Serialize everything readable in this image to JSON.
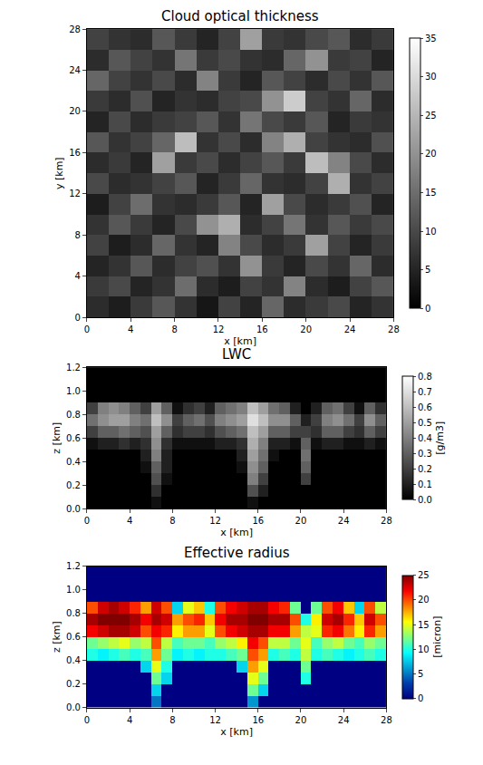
{
  "chart_data": [
    {
      "type": "heatmap",
      "title": "Cloud optical thickness",
      "color": "gray",
      "x_label": "x [km]",
      "y_label": "y [km]",
      "x": [
        1,
        3,
        5,
        7,
        9,
        11,
        13,
        15,
        17,
        19,
        21,
        23,
        25,
        27
      ],
      "y": [
        1,
        3,
        5,
        7,
        9,
        11,
        13,
        15,
        17,
        19,
        21,
        23,
        25,
        27
      ],
      "z": [
        [
          6,
          4,
          8,
          12,
          7,
          3,
          9,
          5,
          14,
          6,
          8,
          10,
          5,
          7
        ],
        [
          8,
          10,
          5,
          7,
          15,
          6,
          4,
          9,
          7,
          18,
          6,
          4,
          9,
          12
        ],
        [
          5,
          7,
          12,
          6,
          9,
          11,
          7,
          20,
          8,
          5,
          10,
          7,
          14,
          6
        ],
        [
          9,
          4,
          6,
          14,
          7,
          5,
          18,
          10,
          6,
          8,
          22,
          9,
          5,
          8
        ],
        [
          7,
          12,
          8,
          5,
          10,
          20,
          24,
          6,
          9,
          16,
          7,
          12,
          8,
          10
        ],
        [
          4,
          9,
          15,
          7,
          6,
          8,
          12,
          5,
          22,
          10,
          6,
          8,
          11,
          5
        ],
        [
          10,
          6,
          7,
          9,
          12,
          5,
          8,
          14,
          7,
          6,
          9,
          24,
          7,
          9
        ],
        [
          6,
          8,
          5,
          22,
          8,
          10,
          6,
          9,
          12,
          8,
          26,
          18,
          10,
          6
        ],
        [
          12,
          7,
          9,
          14,
          26,
          7,
          10,
          6,
          18,
          24,
          9,
          7,
          6,
          11
        ],
        [
          5,
          10,
          6,
          8,
          9,
          12,
          7,
          16,
          10,
          8,
          12,
          5,
          8,
          7
        ],
        [
          8,
          6,
          11,
          5,
          7,
          6,
          9,
          10,
          20,
          28,
          9,
          7,
          14,
          6
        ],
        [
          14,
          9,
          7,
          10,
          6,
          18,
          8,
          5,
          12,
          9,
          6,
          10,
          7,
          12
        ],
        [
          6,
          12,
          9,
          7,
          16,
          8,
          10,
          7,
          6,
          14,
          20,
          8,
          9,
          5
        ],
        [
          9,
          7,
          6,
          12,
          8,
          5,
          9,
          22,
          8,
          7,
          10,
          12,
          6,
          8
        ]
      ],
      "xlim": [
        0,
        28
      ],
      "xticks": [
        0,
        4,
        8,
        12,
        16,
        20,
        24,
        28
      ],
      "ylim": [
        0,
        28
      ],
      "yticks": [
        0,
        4,
        8,
        12,
        16,
        20,
        24,
        28
      ],
      "zlim": [
        0,
        35
      ],
      "zticks": [
        0,
        5,
        10,
        15,
        20,
        25,
        30,
        35
      ]
    },
    {
      "type": "heatmap",
      "title": "LWC",
      "color": "gray",
      "x_label": "x [km]",
      "y_label": "z [km]",
      "z_label": "[g/m3]",
      "x": [
        0.5,
        1.5,
        2.5,
        3.5,
        4.5,
        5.5,
        6.5,
        7.5,
        8.5,
        9.5,
        10.5,
        11.5,
        12.5,
        13.5,
        14.5,
        15.5,
        16.5,
        17.5,
        18.5,
        19.5,
        20.5,
        21.5,
        22.5,
        23.5,
        24.5,
        25.5,
        26.5,
        27.5
      ],
      "y": [
        0.05,
        0.15,
        0.25,
        0.35,
        0.45,
        0.55,
        0.65,
        0.75,
        0.85,
        0.95,
        1.05,
        1.15
      ],
      "z": [
        [
          0,
          0,
          0,
          0,
          0,
          0,
          0.05,
          0,
          0,
          0,
          0,
          0,
          0,
          0,
          0,
          0.05,
          0,
          0,
          0,
          0,
          0,
          0,
          0,
          0,
          0,
          0,
          0,
          0
        ],
        [
          0,
          0,
          0,
          0,
          0,
          0,
          0.15,
          0,
          0,
          0,
          0,
          0,
          0,
          0,
          0,
          0.25,
          0.1,
          0,
          0,
          0,
          0,
          0,
          0,
          0,
          0,
          0,
          0,
          0
        ],
        [
          0,
          0,
          0,
          0,
          0,
          0,
          0.25,
          0.05,
          0,
          0,
          0,
          0,
          0,
          0,
          0,
          0.4,
          0.2,
          0,
          0,
          0,
          0.2,
          0,
          0,
          0,
          0,
          0,
          0,
          0
        ],
        [
          0,
          0,
          0,
          0,
          0,
          0.05,
          0.3,
          0.1,
          0,
          0,
          0,
          0,
          0,
          0,
          0.05,
          0.45,
          0.3,
          0,
          0,
          0,
          0.3,
          0,
          0,
          0,
          0,
          0,
          0,
          0
        ],
        [
          0,
          0,
          0,
          0,
          0,
          0.1,
          0.4,
          0.1,
          0,
          0,
          0,
          0,
          0,
          0,
          0.1,
          0.5,
          0.35,
          0.05,
          0,
          0,
          0.35,
          0,
          0,
          0,
          0,
          0,
          0,
          0
        ],
        [
          0.05,
          0.1,
          0.1,
          0.15,
          0.1,
          0.15,
          0.45,
          0.15,
          0.05,
          0.05,
          0.05,
          0.05,
          0.1,
          0.1,
          0.15,
          0.55,
          0.4,
          0.1,
          0.1,
          0.05,
          0.3,
          0.05,
          0.1,
          0.1,
          0.05,
          0.05,
          0.1,
          0.05
        ],
        [
          0.2,
          0.3,
          0.3,
          0.35,
          0.3,
          0.25,
          0.5,
          0.3,
          0.15,
          0.2,
          0.2,
          0.15,
          0.25,
          0.3,
          0.35,
          0.6,
          0.5,
          0.3,
          0.3,
          0.2,
          0.2,
          0.15,
          0.3,
          0.3,
          0.2,
          0.15,
          0.3,
          0.2
        ],
        [
          0.35,
          0.45,
          0.5,
          0.5,
          0.4,
          0.35,
          0.6,
          0.45,
          0.2,
          0.3,
          0.35,
          0.25,
          0.4,
          0.45,
          0.5,
          0.7,
          0.6,
          0.45,
          0.45,
          0.3,
          0.1,
          0.2,
          0.4,
          0.45,
          0.35,
          0.2,
          0.45,
          0.3
        ],
        [
          0.2,
          0.4,
          0.45,
          0.4,
          0.3,
          0.2,
          0.5,
          0.3,
          0.05,
          0.15,
          0.2,
          0.1,
          0.3,
          0.35,
          0.4,
          0.6,
          0.5,
          0.35,
          0.3,
          0.1,
          0,
          0.1,
          0.3,
          0.35,
          0.2,
          0.05,
          0.3,
          0.15
        ],
        [
          0,
          0,
          0,
          0,
          0,
          0,
          0,
          0,
          0,
          0,
          0,
          0,
          0,
          0,
          0,
          0,
          0,
          0,
          0,
          0,
          0,
          0,
          0,
          0,
          0,
          0,
          0,
          0
        ],
        [
          0,
          0,
          0,
          0,
          0,
          0,
          0,
          0,
          0,
          0,
          0,
          0,
          0,
          0,
          0,
          0,
          0,
          0,
          0,
          0,
          0,
          0,
          0,
          0,
          0,
          0,
          0,
          0
        ],
        [
          0,
          0,
          0,
          0,
          0,
          0,
          0,
          0,
          0,
          0,
          0,
          0,
          0,
          0,
          0,
          0,
          0,
          0,
          0,
          0,
          0,
          0,
          0,
          0,
          0,
          0,
          0,
          0
        ]
      ],
      "xlim": [
        0,
        28
      ],
      "xticks": [
        0,
        4,
        8,
        12,
        16,
        20,
        24,
        28
      ],
      "ylim": [
        0,
        1.2
      ],
      "yticks": [
        {
          "value": 0,
          "label": "0.0"
        },
        0.2,
        0.4,
        0.6,
        0.8,
        {
          "value": 1,
          "label": "1.0"
        },
        1.2
      ],
      "zlim": [
        0,
        0.8
      ],
      "zticks": [
        {
          "value": 0,
          "label": "0.0"
        },
        0.1,
        0.2,
        0.3,
        0.4,
        0.5,
        0.6,
        0.7,
        0.8
      ]
    },
    {
      "type": "heatmap",
      "title": "Effective radius",
      "color": "jet",
      "x_label": "x [km]",
      "y_label": "z [km]",
      "z_label": "[micron]",
      "x": [
        0.5,
        1.5,
        2.5,
        3.5,
        4.5,
        5.5,
        6.5,
        7.5,
        8.5,
        9.5,
        10.5,
        11.5,
        12.5,
        13.5,
        14.5,
        15.5,
        16.5,
        17.5,
        18.5,
        19.5,
        20.5,
        21.5,
        22.5,
        23.5,
        24.5,
        25.5,
        26.5,
        27.5
      ],
      "y": [
        0.05,
        0.15,
        0.25,
        0.35,
        0.45,
        0.55,
        0.65,
        0.75,
        0.85,
        0.95,
        1.05,
        1.15
      ],
      "z": [
        [
          0,
          0,
          0,
          0,
          0,
          0,
          5,
          0,
          0,
          0,
          0,
          0,
          0,
          0,
          0,
          6,
          0,
          0,
          0,
          0,
          0,
          0,
          0,
          0,
          0,
          0,
          0,
          0
        ],
        [
          0,
          0,
          0,
          0,
          0,
          0,
          8,
          0,
          0,
          0,
          0,
          0,
          0,
          0,
          0,
          12,
          8,
          0,
          0,
          0,
          0,
          0,
          0,
          0,
          0,
          0,
          0,
          0
        ],
        [
          0,
          0,
          0,
          0,
          0,
          0,
          12,
          8,
          0,
          0,
          0,
          0,
          0,
          0,
          0,
          15,
          12,
          0,
          0,
          0,
          10,
          0,
          0,
          0,
          0,
          0,
          0,
          0
        ],
        [
          0,
          0,
          0,
          0,
          0,
          8,
          15,
          10,
          0,
          0,
          0,
          0,
          0,
          0,
          8,
          18,
          15,
          0,
          0,
          0,
          12,
          0,
          0,
          0,
          0,
          0,
          0,
          0
        ],
        [
          10,
          9,
          10,
          11,
          10,
          11,
          18,
          12,
          9,
          10,
          9,
          10,
          10,
          11,
          12,
          20,
          18,
          10,
          11,
          10,
          14,
          10,
          11,
          10,
          9,
          10,
          11,
          10
        ],
        [
          12,
          13,
          14,
          15,
          13,
          14,
          20,
          14,
          11,
          12,
          12,
          11,
          13,
          14,
          16,
          22,
          20,
          14,
          14,
          12,
          15,
          11,
          13,
          14,
          12,
          11,
          13,
          12
        ],
        [
          22,
          23,
          24,
          24,
          23,
          20,
          22,
          21,
          16,
          18,
          18,
          15,
          20,
          22,
          23,
          24,
          24,
          22,
          22,
          18,
          14,
          15,
          21,
          22,
          19,
          16,
          21,
          18
        ],
        [
          24,
          25,
          25,
          25,
          24,
          22,
          24,
          23,
          18,
          20,
          21,
          17,
          22,
          24,
          24,
          25,
          25,
          24,
          24,
          20,
          10,
          16,
          23,
          24,
          21,
          17,
          23,
          20
        ],
        [
          20,
          23,
          24,
          23,
          21,
          18,
          23,
          20,
          8,
          15,
          17,
          10,
          20,
          22,
          23,
          24,
          24,
          22,
          21,
          12,
          0,
          12,
          20,
          22,
          17,
          8,
          20,
          14
        ],
        [
          0,
          0,
          0,
          0,
          0,
          0,
          0,
          0,
          0,
          0,
          0,
          0,
          0,
          0,
          0,
          0,
          0,
          0,
          0,
          0,
          0,
          0,
          0,
          0,
          0,
          0,
          0,
          0
        ],
        [
          0,
          0,
          0,
          0,
          0,
          0,
          0,
          0,
          0,
          0,
          0,
          0,
          0,
          0,
          0,
          0,
          0,
          0,
          0,
          0,
          0,
          0,
          0,
          0,
          0,
          0,
          0,
          0
        ],
        [
          0,
          0,
          0,
          0,
          0,
          0,
          0,
          0,
          0,
          0,
          0,
          0,
          0,
          0,
          0,
          0,
          0,
          0,
          0,
          0,
          0,
          0,
          0,
          0,
          0,
          0,
          0,
          0
        ]
      ],
      "xlim": [
        0,
        28
      ],
      "xticks": [
        0,
        4,
        8,
        12,
        16,
        20,
        24,
        28
      ],
      "ylim": [
        0,
        1.2
      ],
      "yticks": [
        {
          "value": 0,
          "label": "0.0"
        },
        0.2,
        0.4,
        0.6,
        0.8,
        {
          "value": 1,
          "label": "1.0"
        },
        1.2
      ],
      "zlim": [
        0,
        25
      ],
      "zticks": [
        0,
        5,
        10,
        15,
        20,
        25
      ]
    }
  ]
}
